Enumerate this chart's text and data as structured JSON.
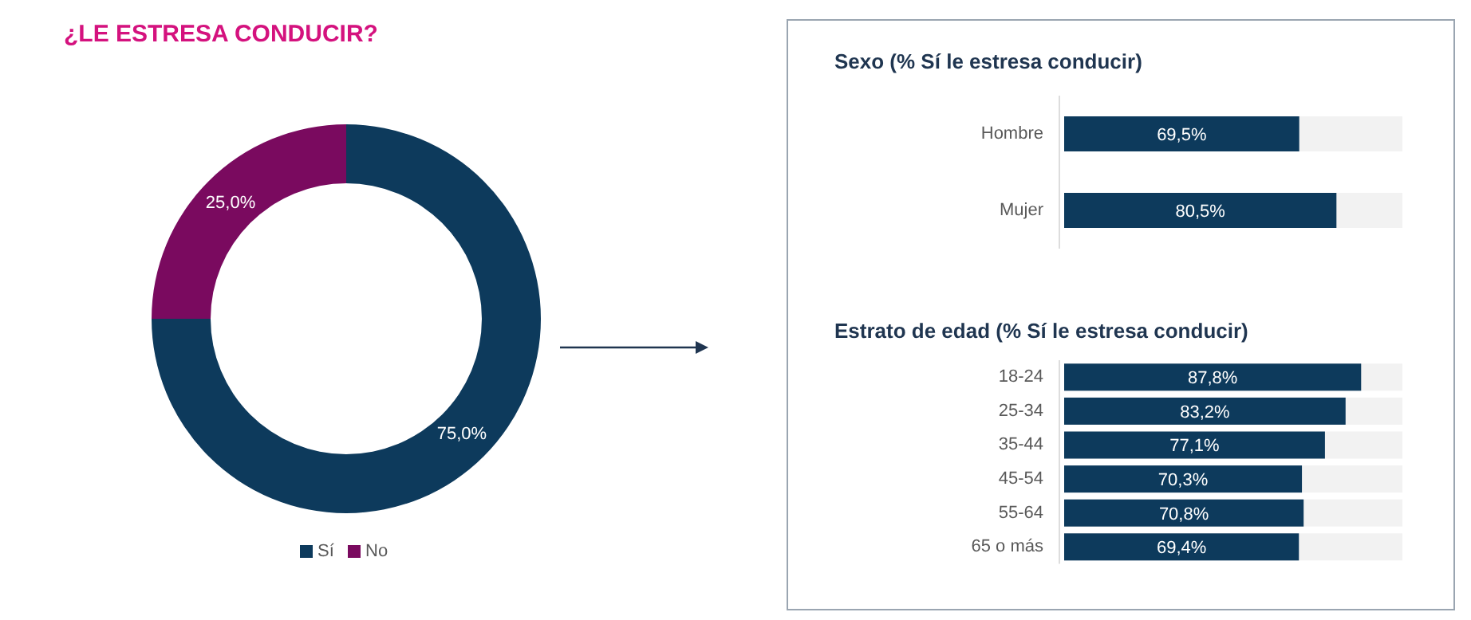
{
  "chart_data": [
    {
      "type": "donut",
      "title": "¿LE ESTRESA CONDUCIR?",
      "categories": [
        "Sí",
        "No"
      ],
      "values": [
        75,
        25
      ],
      "colors": [
        "#0d3a5c",
        "#7a0a5f"
      ],
      "value_labels": [
        "75,0%",
        "25,0%"
      ],
      "legend": "bottom"
    },
    {
      "type": "bar",
      "orientation": "horizontal",
      "title": "Sexo (% Sí le estresa conducir)",
      "categories": [
        "Hombre",
        "Mujer"
      ],
      "values": [
        69.5,
        80.5
      ],
      "value_labels": [
        "69,5%",
        "80,5%"
      ],
      "color": "#0d3a5c",
      "xlim": [
        0,
        100
      ],
      "tick_labels": "y"
    },
    {
      "type": "bar",
      "orientation": "horizontal",
      "title": "Estrato de edad (% Sí le estresa conducir)",
      "categories": [
        "18-24",
        "25-34",
        "35-44",
        "45-54",
        "55-64",
        "65 o más"
      ],
      "values": [
        87.8,
        83.2,
        77.1,
        70.3,
        70.8,
        69.4
      ],
      "value_labels": [
        "87,8%",
        "83,2%",
        "77,1%",
        "70,3%",
        "70,8%",
        "69,4%"
      ],
      "color": "#0d3a5c",
      "xlim": [
        0,
        100
      ],
      "tick_labels": "y"
    }
  ]
}
